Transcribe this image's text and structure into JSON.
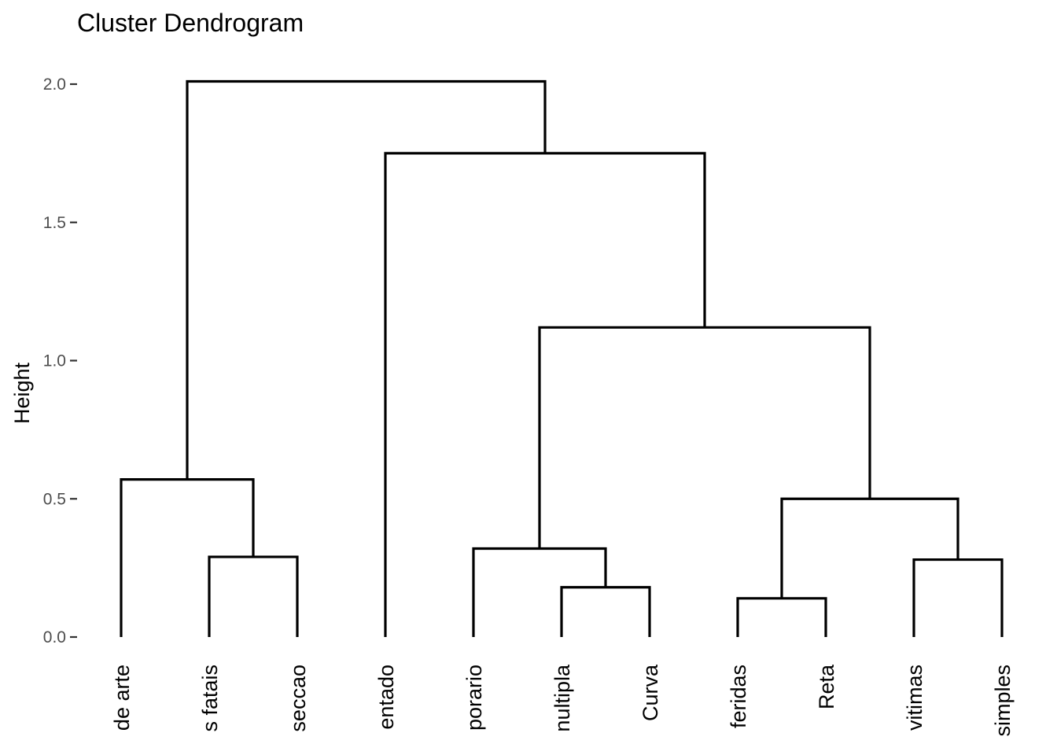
{
  "chart_data": {
    "type": "dendrogram",
    "title": "Cluster Dendrogram",
    "ylabel": "Height",
    "xlabel": "",
    "ylim": [
      0,
      2.0
    ],
    "yticks": [
      {
        "value": 0.0,
        "label": "0.0"
      },
      {
        "value": 0.5,
        "label": "0.5"
      },
      {
        "value": 1.0,
        "label": "1.0"
      },
      {
        "value": 1.5,
        "label": "1.5"
      },
      {
        "value": 2.0,
        "label": "2.0"
      }
    ],
    "grid": false,
    "leaves": [
      "de arte",
      "s fatais",
      "seccao",
      "entado",
      "porario",
      "nultipla",
      "Curva",
      "feridas",
      "Reta",
      "vitimas",
      "simples"
    ],
    "merges": [
      {
        "id": "m1",
        "left": "s fatais",
        "right": "seccao",
        "height": 0.29
      },
      {
        "id": "m2",
        "left": "de arte",
        "right": "m1",
        "height": 0.57
      },
      {
        "id": "m3",
        "left": "nultipla",
        "right": "Curva",
        "height": 0.18
      },
      {
        "id": "m4",
        "left": "porario",
        "right": "m3",
        "height": 0.32
      },
      {
        "id": "m5",
        "left": "feridas",
        "right": "Reta",
        "height": 0.14
      },
      {
        "id": "m6",
        "left": "vitimas",
        "right": "simples",
        "height": 0.28
      },
      {
        "id": "m7",
        "left": "m5",
        "right": "m6",
        "height": 0.5
      },
      {
        "id": "m8",
        "left": "m4",
        "right": "m7",
        "height": 1.12
      },
      {
        "id": "m9",
        "left": "entado",
        "right": "m8",
        "height": 1.75
      },
      {
        "id": "m10",
        "left": "m2",
        "right": "m9",
        "height": 2.01
      }
    ]
  }
}
